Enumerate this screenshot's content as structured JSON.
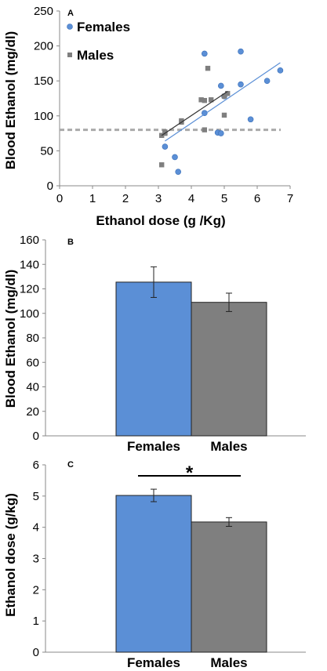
{
  "chart_data": [
    {
      "type": "scatter",
      "panel_label": "A",
      "xlabel": "Ethanol dose (g /Kg)",
      "ylabel": "Blood Ethanol  (mg/dl)",
      "xlim": [
        0,
        7
      ],
      "ylim": [
        0,
        250
      ],
      "xticks": [
        "0",
        "1",
        "2",
        "3",
        "4",
        "5",
        "6",
        "7"
      ],
      "yticks": [
        "0",
        "50",
        "100",
        "150",
        "200",
        "250"
      ],
      "threshold_line": 80,
      "series": [
        {
          "name": "Females",
          "color": "#5b8fd6",
          "marker": "circle",
          "points": [
            [
              3.2,
              56
            ],
            [
              3.5,
              41
            ],
            [
              3.6,
              20
            ],
            [
              4.4,
              189
            ],
            [
              4.4,
              104
            ],
            [
              4.8,
              76
            ],
            [
              4.9,
              143
            ],
            [
              4.9,
              75
            ],
            [
              5.0,
              128
            ],
            [
              5.5,
              192
            ],
            [
              5.5,
              145
            ],
            [
              5.8,
              95
            ],
            [
              6.3,
              150
            ],
            [
              6.7,
              165
            ]
          ],
          "trendline": [
            [
              3.2,
              64
            ],
            [
              6.7,
              176
            ]
          ]
        },
        {
          "name": "Males",
          "color": "#7f7f7f",
          "marker": "square",
          "points": [
            [
              3.1,
              30
            ],
            [
              3.1,
              72
            ],
            [
              3.2,
              77
            ],
            [
              3.2,
              75
            ],
            [
              3.7,
              93
            ],
            [
              3.7,
              91
            ],
            [
              4.3,
              123
            ],
            [
              4.4,
              122
            ],
            [
              4.4,
              80
            ],
            [
              4.5,
              168
            ],
            [
              4.6,
              123
            ],
            [
              5.0,
              101
            ],
            [
              5.0,
              128
            ],
            [
              5.1,
              132
            ]
          ],
          "trendline": [
            [
              3.1,
              72
            ],
            [
              5.1,
              135
            ]
          ]
        }
      ]
    },
    {
      "type": "bar",
      "panel_label": "B",
      "ylabel": "Blood Ethanol (mg/dl)",
      "ylim": [
        0,
        160
      ],
      "yticks": [
        "0",
        "20",
        "40",
        "60",
        "80",
        "100",
        "120",
        "140",
        "160"
      ],
      "categories": [
        "Females",
        "Males"
      ],
      "values": [
        125.5,
        109
      ],
      "errors": [
        12.5,
        7.5
      ],
      "colors": [
        "#5b8fd6",
        "#7f7f7f"
      ]
    },
    {
      "type": "bar",
      "panel_label": "C",
      "ylabel": "Ethanol dose (g/kg)",
      "ylim": [
        0,
        6
      ],
      "yticks": [
        "0",
        "1",
        "2",
        "3",
        "4",
        "5",
        "6"
      ],
      "categories": [
        "Females",
        "Males"
      ],
      "values": [
        5.02,
        4.17
      ],
      "errors": [
        0.2,
        0.14
      ],
      "colors": [
        "#5b8fd6",
        "#7f7f7f"
      ],
      "significance": "*"
    }
  ]
}
